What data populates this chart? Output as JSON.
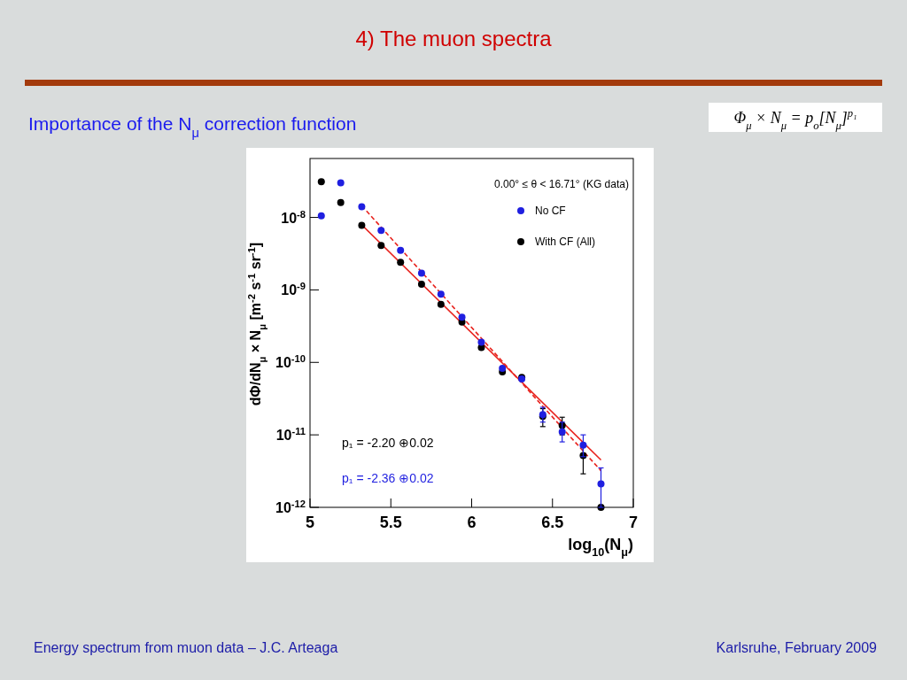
{
  "chart_data": {
    "type": "scatter",
    "title": "4) The muon spectra",
    "subtitle": "Importance of the N$_{μ}$ correction function",
    "xlabel": "log$_{10}$(N$_{μ}$)",
    "ylabel": "dΦ/dN$_{μ}$ × N$_{μ}$ [m$^{-2}$ s$^{-1}$ sr$^{-1}$]",
    "legend_title": "0.00° ≤ θ < 16.71° (KG data)",
    "annotations": [
      "Φ$_{μ}$ × N$_{μ}$ = p$_{o}$[N$_{μ}$]$^{p₁}$",
      "p₁ = -2.20 ⊕0.02",
      "p₁ = -2.36 ⊕0.02",
      "Energy spectrum from muon data – J.C. Arteaga",
      "Karlsruhe,  February 2009"
    ],
    "x": [
      5.07,
      5.19,
      5.32,
      5.44,
      5.56,
      5.69,
      5.81,
      5.94,
      6.06,
      6.19,
      6.31,
      6.44,
      6.56,
      6.69,
      6.8
    ],
    "series": [
      {
        "name": "No CF",
        "color": "#1f1fe0",
        "values": [
          1.05e-08,
          3e-08,
          1.4e-08,
          6.6e-09,
          3.5e-09,
          1.7e-09,
          8.7e-10,
          4.2e-10,
          1.9e-10,
          8.3e-11,
          5.9e-11,
          1.9e-11,
          1.1e-11,
          7.2e-12,
          2.1e-12
        ],
        "errors": [
          null,
          null,
          null,
          null,
          null,
          null,
          null,
          null,
          null,
          null,
          null,
          [
            1.5e-11,
            2.4e-11
          ],
          [
            8e-12,
            1.5e-11
          ],
          [
            5e-12,
            1e-11
          ],
          [
            1e-12,
            3.5e-12
          ]
        ]
      },
      {
        "name": "With CF (All)",
        "color": "#000000",
        "values": [
          3.1e-08,
          1.6e-08,
          7.8e-09,
          4.1e-09,
          2.4e-09,
          1.2e-09,
          6.3e-10,
          3.6e-10,
          1.6e-10,
          7.4e-11,
          6.2e-11,
          1.8e-11,
          1.35e-11,
          5.2e-12,
          1e-12
        ],
        "errors": [
          null,
          null,
          null,
          null,
          null,
          null,
          null,
          null,
          null,
          null,
          null,
          [
            1.3e-11,
            2.3e-11
          ],
          [
            1e-11,
            1.75e-11
          ],
          [
            2.9e-12,
            7.5e-12
          ],
          null
        ]
      },
      {
        "type": "line",
        "color": "#e8231e",
        "values": [
          null,
          null,
          7.9e-09,
          null,
          null,
          null,
          null,
          null,
          null,
          null,
          null,
          null,
          null,
          null,
          4.5e-12
        ],
        "line_style": "solid",
        "marker": "none"
      },
      {
        "type": "line",
        "color": "#e8231e",
        "values": [
          null,
          null,
          1.45e-08,
          null,
          null,
          null,
          null,
          null,
          null,
          null,
          null,
          null,
          null,
          null,
          3.2e-12
        ],
        "line_style": "dashed",
        "marker": "none"
      }
    ],
    "xlim": [
      5,
      7
    ],
    "xticks": [
      5,
      5.5,
      6,
      6.5,
      7
    ],
    "ylim": [
      1e-12,
      6.5e-08
    ],
    "yticks": [
      {
        "value": 1e-12,
        "label": "10$^{-12}$"
      },
      {
        "value": 1e-11,
        "label": "10$^{-11}$"
      },
      {
        "value": 1e-10,
        "label": "10$^{-10}$"
      },
      {
        "value": 1e-09,
        "label": "10$^{-9}$"
      },
      {
        "value": 1e-08,
        "label": "10$^{-8}$"
      }
    ],
    "log": "y",
    "grid": false,
    "legend": "top right",
    "marker": "circle"
  }
}
